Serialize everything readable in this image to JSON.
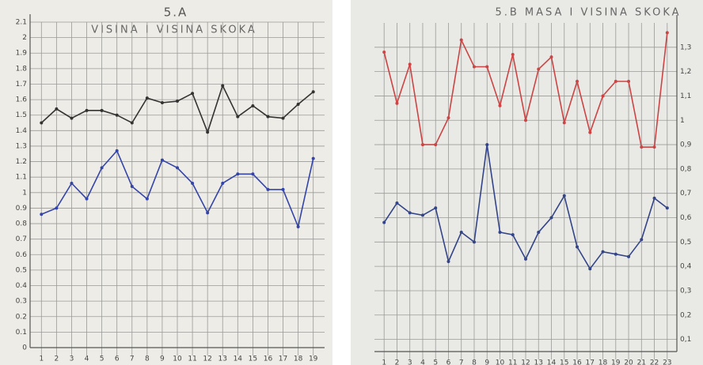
{
  "chart_data": [
    {
      "type": "line",
      "title": "5.A",
      "subtitle": "VISINA I VISINA SKOKA",
      "categories": [
        "1",
        "2",
        "3",
        "4",
        "5",
        "6",
        "7",
        "8",
        "9",
        "10",
        "11",
        "12",
        "13",
        "14",
        "15",
        "16",
        "17",
        "18",
        "19"
      ],
      "series": [
        {
          "color": "#333333",
          "values": [
            1.45,
            1.54,
            1.48,
            1.53,
            1.53,
            1.5,
            1.45,
            1.61,
            1.58,
            1.59,
            1.64,
            1.39,
            1.69,
            1.49,
            1.56,
            1.49,
            1.48,
            1.57,
            1.65
          ]
        },
        {
          "color": "#3344aa",
          "values": [
            0.86,
            0.9,
            1.06,
            0.96,
            1.16,
            1.27,
            1.04,
            0.96,
            1.21,
            1.16,
            1.06,
            0.87,
            1.06,
            1.12,
            1.12,
            1.02,
            1.02,
            0.78,
            1.22
          ]
        }
      ],
      "ylim": [
        0,
        2.1
      ],
      "yticks": [
        0,
        0.1,
        0.2,
        0.3,
        0.4,
        0.5,
        0.6,
        0.7,
        0.8,
        0.9,
        1,
        1.1,
        1.2,
        1.3,
        1.4,
        1.5,
        1.6,
        1.7,
        1.8,
        1.9,
        2,
        2.1
      ],
      "grid": true,
      "y_axis_side": "left"
    },
    {
      "type": "line",
      "title": "5.B MASA I VISINA SKOKA",
      "categories": [
        "1",
        "2",
        "3",
        "4",
        "5",
        "6",
        "7",
        "8",
        "9",
        "10",
        "11",
        "12",
        "13",
        "14",
        "15",
        "16",
        "17",
        "18",
        "19",
        "20",
        "21",
        "22",
        "23"
      ],
      "series": [
        {
          "color": "#cc4444",
          "values": [
            1.28,
            1.07,
            1.23,
            0.9,
            0.9,
            1.01,
            1.33,
            1.22,
            1.22,
            1.06,
            1.27,
            1.0,
            1.21,
            1.26,
            0.99,
            1.16,
            0.95,
            1.1,
            1.16,
            1.16,
            0.89,
            0.89,
            1.36
          ]
        },
        {
          "color": "#334488",
          "values": [
            0.58,
            0.66,
            0.62,
            0.61,
            0.64,
            0.42,
            0.54,
            0.5,
            0.9,
            0.54,
            0.53,
            0.43,
            0.54,
            0.6,
            0.69,
            0.48,
            0.39,
            0.46,
            0.45,
            0.44,
            0.51,
            0.68,
            0.64
          ]
        }
      ],
      "ylim": [
        0.05,
        1.4
      ],
      "yticks": [
        {
          "value": 0.1,
          "label": "0,1"
        },
        {
          "value": 0.2,
          "label": "0,2"
        },
        {
          "value": 0.3,
          "label": "0,3"
        },
        {
          "value": 0.4,
          "label": "0,4"
        },
        {
          "value": 0.5,
          "label": "0,5"
        },
        {
          "value": 0.6,
          "label": "0,6"
        },
        {
          "value": 0.7,
          "label": "0,7"
        },
        {
          "value": 0.8,
          "label": "0,8"
        },
        {
          "value": 0.9,
          "label": "0,9"
        },
        {
          "value": 1,
          "label": "1"
        },
        {
          "value": 1.1,
          "label": "1,1"
        },
        {
          "value": 1.2,
          "label": "1,2"
        },
        {
          "value": 1.3,
          "label": "1,3"
        }
      ],
      "grid": true,
      "y_axis_side": "right"
    }
  ]
}
